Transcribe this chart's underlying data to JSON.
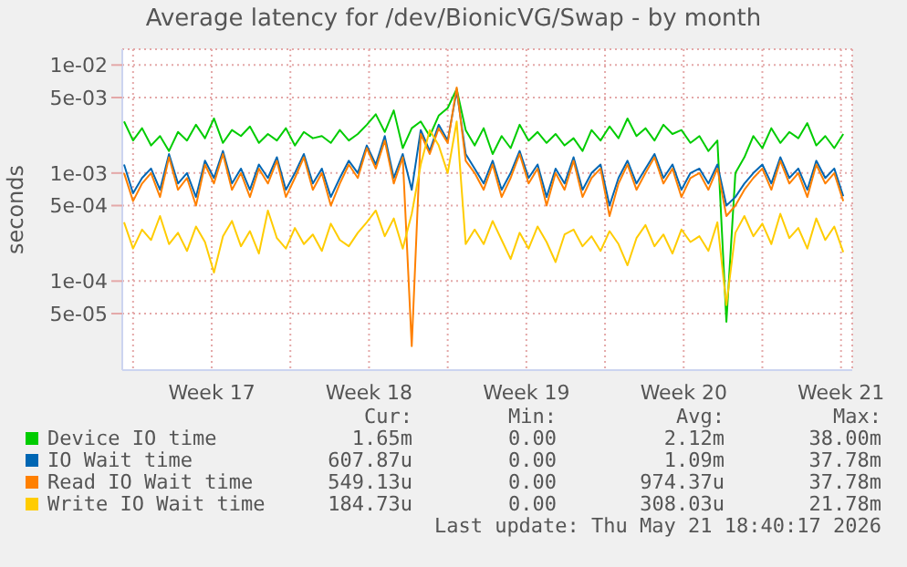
{
  "chart_data": {
    "type": "line",
    "title": "Average latency for /dev/BionicVG/Swap - by month",
    "ylabel": "seconds",
    "x": [
      "2026-04-19T14:24",
      "2026-04-20T00:00",
      "2026-04-20T09:36",
      "2026-04-20T19:12",
      "2026-04-21T04:48",
      "2026-04-21T14:24",
      "2026-04-22T00:00",
      "2026-04-22T09:36",
      "2026-04-22T19:12",
      "2026-04-23T04:48",
      "2026-04-23T14:24",
      "2026-04-24T00:00",
      "2026-04-24T09:36",
      "2026-04-24T19:12",
      "2026-04-25T04:48",
      "2026-04-25T14:24",
      "2026-04-26T00:00",
      "2026-04-26T09:36",
      "2026-04-26T19:12",
      "2026-04-27T04:48",
      "2026-04-27T14:24",
      "2026-04-28T00:00",
      "2026-04-28T09:36",
      "2026-04-28T19:12",
      "2026-04-29T04:48",
      "2026-04-29T14:24",
      "2026-04-30T00:00",
      "2026-04-30T09:36",
      "2026-04-30T19:12",
      "2026-05-01T04:48",
      "2026-05-01T14:24",
      "2026-05-02T00:00",
      "2026-05-02T09:36",
      "2026-05-02T19:12",
      "2026-05-03T04:48",
      "2026-05-03T14:24",
      "2026-05-04T00:00",
      "2026-05-04T09:36",
      "2026-05-04T19:12",
      "2026-05-05T04:48",
      "2026-05-05T14:24",
      "2026-05-06T00:00",
      "2026-05-06T09:36",
      "2026-05-06T19:12",
      "2026-05-07T04:48",
      "2026-05-07T14:24",
      "2026-05-08T00:00",
      "2026-05-08T09:36",
      "2026-05-08T19:12",
      "2026-05-09T04:48",
      "2026-05-09T14:24",
      "2026-05-10T00:00",
      "2026-05-10T09:36",
      "2026-05-10T19:12",
      "2026-05-11T04:48",
      "2026-05-11T14:24",
      "2026-05-12T00:00",
      "2026-05-12T09:36",
      "2026-05-12T19:12",
      "2026-05-13T04:48",
      "2026-05-13T14:24",
      "2026-05-14T00:00",
      "2026-05-14T09:36",
      "2026-05-14T19:12",
      "2026-05-15T04:48",
      "2026-05-15T14:24",
      "2026-05-16T00:00",
      "2026-05-16T09:36",
      "2026-05-16T19:12",
      "2026-05-17T04:48",
      "2026-05-17T14:24",
      "2026-05-18T00:00",
      "2026-05-18T09:36",
      "2026-05-18T19:12",
      "2026-05-19T04:48",
      "2026-05-19T14:24",
      "2026-05-20T00:00",
      "2026-05-20T09:36",
      "2026-05-20T19:12",
      "2026-05-21T04:48",
      "2026-05-21T14:24"
    ],
    "series": [
      {
        "name": "Device IO time",
        "color": "#00cc00",
        "values": [
          0.003,
          0.002,
          0.0026,
          0.0018,
          0.0022,
          0.0016,
          0.0024,
          0.002,
          0.0028,
          0.0021,
          0.0032,
          0.0019,
          0.0025,
          0.0022,
          0.0027,
          0.0019,
          0.0023,
          0.002,
          0.0026,
          0.0018,
          0.0024,
          0.0021,
          0.0022,
          0.0019,
          0.0025,
          0.002,
          0.0023,
          0.0028,
          0.0035,
          0.0024,
          0.0038,
          0.0017,
          0.0026,
          0.003,
          0.0022,
          0.0034,
          0.004,
          0.006,
          0.0025,
          0.0018,
          0.0026,
          0.0015,
          0.0022,
          0.0017,
          0.0028,
          0.002,
          0.0024,
          0.0019,
          0.0023,
          0.0018,
          0.0021,
          0.0016,
          0.0025,
          0.002,
          0.0027,
          0.0021,
          0.0032,
          0.0022,
          0.0026,
          0.002,
          0.0028,
          0.0023,
          0.0025,
          0.0019,
          0.0022,
          0.0016,
          0.002,
          4.2e-05,
          0.001,
          0.0014,
          0.0022,
          0.0017,
          0.0026,
          0.0019,
          0.0024,
          0.0021,
          0.0029,
          0.0018,
          0.0022,
          0.0017,
          0.0023
        ]
      },
      {
        "name": "IO Wait time",
        "color": "#0066b3",
        "values": [
          0.0012,
          0.00065,
          0.0009,
          0.0011,
          0.0007,
          0.0015,
          0.0008,
          0.001,
          0.0006,
          0.0013,
          0.0009,
          0.0016,
          0.0008,
          0.0011,
          0.0007,
          0.0012,
          0.0009,
          0.0014,
          0.0007,
          0.001,
          0.0015,
          0.0008,
          0.0011,
          0.0006,
          0.0009,
          0.0013,
          0.001,
          0.0018,
          0.0012,
          0.0022,
          0.0009,
          0.0015,
          0.0007,
          0.0025,
          0.0016,
          0.0028,
          0.002,
          0.0058,
          0.0015,
          0.0011,
          0.0008,
          0.0013,
          0.0007,
          0.001,
          0.0016,
          0.0009,
          0.0012,
          0.0006,
          0.0011,
          0.0008,
          0.0014,
          0.0007,
          0.001,
          0.0012,
          0.0005,
          0.0009,
          0.0013,
          0.0008,
          0.0011,
          0.0015,
          0.0009,
          0.0012,
          0.0007,
          0.001,
          0.0011,
          0.0008,
          0.0012,
          0.0005,
          0.0006,
          0.0008,
          0.001,
          0.0012,
          0.0008,
          0.0014,
          0.0009,
          0.0011,
          0.0007,
          0.0013,
          0.0009,
          0.0011,
          0.00061
        ]
      },
      {
        "name": "Read IO Wait time",
        "color": "#ff8000",
        "values": [
          0.001,
          0.00055,
          0.0008,
          0.001,
          0.0006,
          0.0014,
          0.0007,
          0.0009,
          0.0005,
          0.0012,
          0.0008,
          0.0015,
          0.0007,
          0.001,
          0.0006,
          0.0011,
          0.0008,
          0.0013,
          0.0006,
          0.0009,
          0.0014,
          0.0007,
          0.001,
          0.0005,
          0.0008,
          0.0012,
          0.0009,
          0.0017,
          0.0011,
          0.002,
          0.0008,
          0.0014,
          2.5e-05,
          0.0023,
          0.0015,
          0.0026,
          0.0019,
          0.0062,
          0.0013,
          0.001,
          0.0007,
          0.0012,
          0.0006,
          0.0009,
          0.0015,
          0.0008,
          0.0011,
          0.0005,
          0.001,
          0.0007,
          0.0013,
          0.0006,
          0.0009,
          0.0011,
          0.0004,
          0.0008,
          0.0012,
          0.0007,
          0.001,
          0.0014,
          0.0008,
          0.0011,
          0.0006,
          0.0009,
          0.001,
          0.0007,
          0.0011,
          0.0004,
          0.0005,
          0.0007,
          0.0009,
          0.0011,
          0.0007,
          0.0013,
          0.0008,
          0.001,
          0.0006,
          0.0012,
          0.0008,
          0.001,
          0.00055
        ]
      },
      {
        "name": "Write IO Wait time",
        "color": "#ffcc00",
        "values": [
          0.00035,
          0.0002,
          0.0003,
          0.00024,
          0.0004,
          0.00022,
          0.00028,
          0.00019,
          0.00032,
          0.00023,
          0.00012,
          0.00026,
          0.00036,
          0.00021,
          0.00029,
          0.00018,
          0.00045,
          0.00025,
          0.0002,
          0.00031,
          0.00022,
          0.00027,
          0.00019,
          0.00034,
          0.00024,
          0.00021,
          0.00028,
          0.00035,
          0.00045,
          0.00026,
          0.00038,
          0.0002,
          0.00042,
          0.0012,
          0.0025,
          0.0018,
          0.001,
          0.003,
          0.00022,
          0.0003,
          0.00022,
          0.00036,
          0.00024,
          0.00016,
          0.00028,
          0.0002,
          0.00032,
          0.00023,
          0.00015,
          0.00027,
          0.0003,
          0.00021,
          0.00026,
          0.00019,
          0.00029,
          0.00022,
          0.00014,
          0.00025,
          0.00033,
          0.00021,
          0.00027,
          0.00018,
          0.0003,
          0.00023,
          0.00026,
          0.00019,
          0.00035,
          6e-05,
          0.00028,
          0.0004,
          0.00026,
          0.00034,
          0.00022,
          0.00042,
          0.00025,
          0.00031,
          0.0002,
          0.00038,
          0.00024,
          0.00032,
          0.000185
        ]
      }
    ],
    "log": "y",
    "ylim": [
      1.5e-05,
      0.014
    ],
    "yticks": [
      {
        "value": 5e-05,
        "label": "5e-05"
      },
      {
        "value": 0.0001,
        "label": "1e-04"
      },
      {
        "value": 0.0005,
        "label": "5e-04"
      },
      {
        "value": 0.001,
        "label": "1e-03"
      },
      {
        "value": 0.005,
        "label": "5e-03"
      },
      {
        "value": 0.01,
        "label": "1e-02"
      }
    ],
    "xlim": [
      "2026-04-19T12:29",
      "2026-05-22T00:00"
    ],
    "xticks": [
      {
        "value": "2026-04-20T00:00",
        "label": null
      },
      {
        "value": "2026-04-23T12:00",
        "label": "Week 17"
      },
      {
        "value": "2026-04-27T00:00",
        "label": null
      },
      {
        "value": "2026-04-30T12:00",
        "label": "Week 18"
      },
      {
        "value": "2026-05-04T00:00",
        "label": null
      },
      {
        "value": "2026-05-07T12:00",
        "label": "Week 19"
      },
      {
        "value": "2026-05-11T00:00",
        "label": null
      },
      {
        "value": "2026-05-14T12:00",
        "label": "Week 20"
      },
      {
        "value": "2026-05-18T00:00",
        "label": null
      },
      {
        "value": "2026-05-21T12:00",
        "label": "Week 21"
      }
    ],
    "grid": true,
    "legend": "bottom",
    "annotations": [
      "Cur:",
      "Min:",
      "Avg:",
      "Max:",
      "1.65m",
      "0.00",
      "2.12m",
      "38.00m",
      "607.87u",
      "0.00",
      "1.09m",
      "37.78m",
      "549.13u",
      "0.00",
      "974.37u",
      "37.78m",
      "184.73u",
      "0.00",
      "308.03u",
      "21.78m",
      "Last update: Thu May 21 18:40:17 2026"
    ]
  }
}
